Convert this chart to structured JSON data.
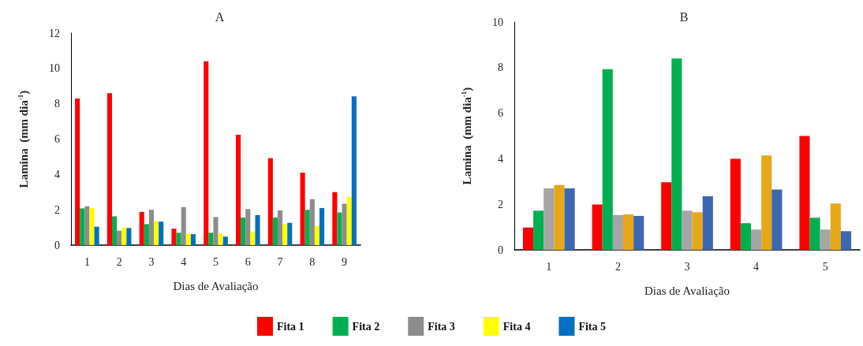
{
  "chart_data": [
    {
      "type": "bar",
      "title": "A",
      "xlabel": "Dias de Avaliação",
      "ylabel": "Lamina  (mm dia$^{-1}$)",
      "categories": [
        "1",
        "2",
        "3",
        "4",
        "5",
        "6",
        "7",
        "8",
        "9"
      ],
      "ylim": [
        0,
        12
      ],
      "yticks": [
        0,
        2,
        4,
        6,
        8,
        10,
        12
      ],
      "grid": false,
      "legend": "bottom",
      "series": [
        {
          "name": "Fita 1",
          "color": "#ff0000",
          "values": [
            8.3,
            8.6,
            1.88,
            0.93,
            10.4,
            6.25,
            4.92,
            4.1,
            3.0
          ]
        },
        {
          "name": "Fita 2",
          "color": "#00b050",
          "values": [
            2.08,
            1.63,
            1.19,
            0.7,
            0.7,
            1.56,
            1.56,
            2.0,
            1.85
          ]
        },
        {
          "name": "Fita 3",
          "color": "#8c8c8c",
          "values": [
            2.2,
            0.82,
            2.0,
            2.15,
            1.59,
            2.04,
            1.96,
            2.6,
            2.34
          ]
        },
        {
          "name": "Fita 4",
          "color": "#ffff00",
          "values": [
            2.1,
            1.0,
            1.35,
            0.65,
            0.65,
            0.77,
            1.19,
            1.08,
            2.74
          ]
        },
        {
          "name": "Fita 5",
          "color": "#0070c0",
          "values": [
            1.04,
            0.97,
            1.33,
            0.62,
            0.48,
            1.7,
            1.26,
            2.1,
            8.42
          ]
        }
      ]
    },
    {
      "type": "bar",
      "title": "B",
      "xlabel": "Dias de Avaliação",
      "ylabel": "Lamina  (mm dia$^{-1}$)",
      "categories": [
        "1",
        "2",
        "3",
        "4",
        "5"
      ],
      "ylim": [
        0,
        10
      ],
      "yticks": [
        0,
        2,
        4,
        6,
        8,
        10
      ],
      "grid": false,
      "legend": false,
      "series": [
        {
          "color": "#ff0000",
          "values": [
            0.98,
            1.99,
            2.97,
            4.0,
            5.0
          ]
        },
        {
          "color": "#00b050",
          "values": [
            1.72,
            7.93,
            8.4,
            1.17,
            1.41
          ]
        },
        {
          "color": "#a5a5a5",
          "values": [
            2.7,
            1.53,
            1.72,
            0.89,
            0.89
          ]
        },
        {
          "color": "#e6a817",
          "values": [
            2.85,
            1.56,
            1.65,
            4.14,
            2.03
          ]
        },
        {
          "color": "#3d67b0",
          "values": [
            2.7,
            1.49,
            2.35,
            2.65,
            0.82
          ]
        }
      ]
    }
  ]
}
